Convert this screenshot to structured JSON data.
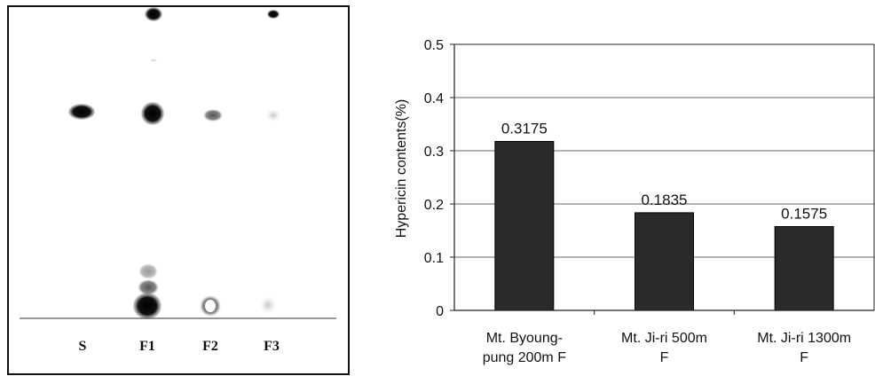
{
  "tlc_plate": {
    "lanes": [
      "S",
      "F1",
      "F2",
      "F3"
    ]
  },
  "chart_data": {
    "type": "bar",
    "categories": [
      [
        "Mt. Byoung-",
        "pung 200m F"
      ],
      [
        "Mt. Ji-ri 500m",
        "F"
      ],
      [
        "Mt. Ji-ri 1300m",
        "F"
      ]
    ],
    "values": [
      0.3175,
      0.1835,
      0.1575
    ],
    "data_labels": [
      "0.3175",
      "0.1835",
      "0.1575"
    ],
    "title": "",
    "xlabel": "",
    "ylabel": "Hypericin contents(%)",
    "ylim": [
      0,
      0.5
    ],
    "yticks": [
      0,
      0.1,
      0.2,
      0.3,
      0.4,
      0.5
    ],
    "ytick_labels": [
      "0",
      "0.1",
      "0.2",
      "0.3",
      "0.4",
      "0.5"
    ],
    "grid": true,
    "legend": "none",
    "bar_color": "#2a2a2a"
  }
}
